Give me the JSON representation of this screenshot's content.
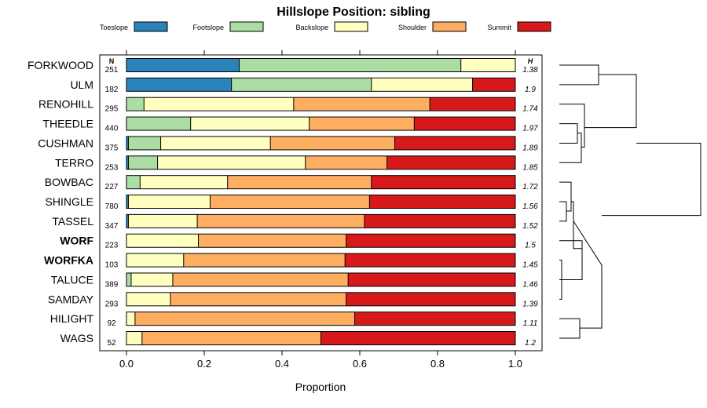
{
  "chart_data": {
    "type": "bar",
    "orientation": "horizontal",
    "stacked": true,
    "title": "Hillslope Position: sibling",
    "xlabel": "Proportion",
    "xlim": [
      0,
      1
    ],
    "x_ticks": [
      "0.0",
      "0.2",
      "0.4",
      "0.6",
      "0.8",
      "1.0"
    ],
    "n_header": "N",
    "h_header": "H",
    "legend_position": "top",
    "series": [
      {
        "name": "Toeslope",
        "color": "#2b83ba"
      },
      {
        "name": "Footslope",
        "color": "#abdda4"
      },
      {
        "name": "Backslope",
        "color": "#ffffbf"
      },
      {
        "name": "Shoulder",
        "color": "#fdae61"
      },
      {
        "name": "Summit",
        "color": "#d7191c"
      }
    ],
    "rows": [
      {
        "label": "FORKWOOD",
        "n": "251",
        "h": "1.38",
        "bold": false,
        "values": [
          0.29,
          0.57,
          0.14,
          0.0,
          0.0
        ]
      },
      {
        "label": "ULM",
        "n": "182",
        "h": "1.9",
        "bold": false,
        "values": [
          0.27,
          0.36,
          0.26,
          0.0,
          0.11
        ]
      },
      {
        "label": "RENOHILL",
        "n": "295",
        "h": "1.74",
        "bold": false,
        "values": [
          0.0,
          0.045,
          0.385,
          0.35,
          0.22
        ]
      },
      {
        "label": "THEEDLE",
        "n": "440",
        "h": "1.97",
        "bold": false,
        "values": [
          0.0,
          0.165,
          0.305,
          0.27,
          0.26
        ]
      },
      {
        "label": "CUSHMAN",
        "n": "375",
        "h": "1.89",
        "bold": false,
        "values": [
          0.005,
          0.083,
          0.282,
          0.32,
          0.31
        ]
      },
      {
        "label": "TERRO",
        "n": "253",
        "h": "1.85",
        "bold": false,
        "values": [
          0.005,
          0.075,
          0.38,
          0.21,
          0.33
        ]
      },
      {
        "label": "BOWBAC",
        "n": "227",
        "h": "1.72",
        "bold": false,
        "values": [
          0.0,
          0.035,
          0.225,
          0.37,
          0.37
        ]
      },
      {
        "label": "SHINGLE",
        "n": "780",
        "h": "1.56",
        "bold": false,
        "values": [
          0.005,
          0.0,
          0.21,
          0.41,
          0.375
        ]
      },
      {
        "label": "TASSEL",
        "n": "347",
        "h": "1.52",
        "bold": false,
        "values": [
          0.005,
          0.0,
          0.177,
          0.43,
          0.388
        ]
      },
      {
        "label": "WORF",
        "n": "223",
        "h": "1.5",
        "bold": true,
        "values": [
          0.0,
          0.0,
          0.185,
          0.38,
          0.435
        ]
      },
      {
        "label": "WORFKA",
        "n": "103",
        "h": "1.45",
        "bold": true,
        "values": [
          0.0,
          0.0,
          0.147,
          0.415,
          0.438
        ]
      },
      {
        "label": "TALUCE",
        "n": "389",
        "h": "1.46",
        "bold": false,
        "values": [
          0.0,
          0.012,
          0.107,
          0.451,
          0.43
        ]
      },
      {
        "label": "SAMDAY",
        "n": "293",
        "h": "1.39",
        "bold": false,
        "values": [
          0.0,
          0.0,
          0.113,
          0.452,
          0.435
        ]
      },
      {
        "label": "HILIGHT",
        "n": "92",
        "h": "1.11",
        "bold": false,
        "values": [
          0.0,
          0.0,
          0.022,
          0.565,
          0.413
        ]
      },
      {
        "label": "WAGS",
        "n": "52",
        "h": "1.2",
        "bold": false,
        "values": [
          0.0,
          0.0,
          0.04,
          0.46,
          0.5
        ]
      }
    ]
  }
}
